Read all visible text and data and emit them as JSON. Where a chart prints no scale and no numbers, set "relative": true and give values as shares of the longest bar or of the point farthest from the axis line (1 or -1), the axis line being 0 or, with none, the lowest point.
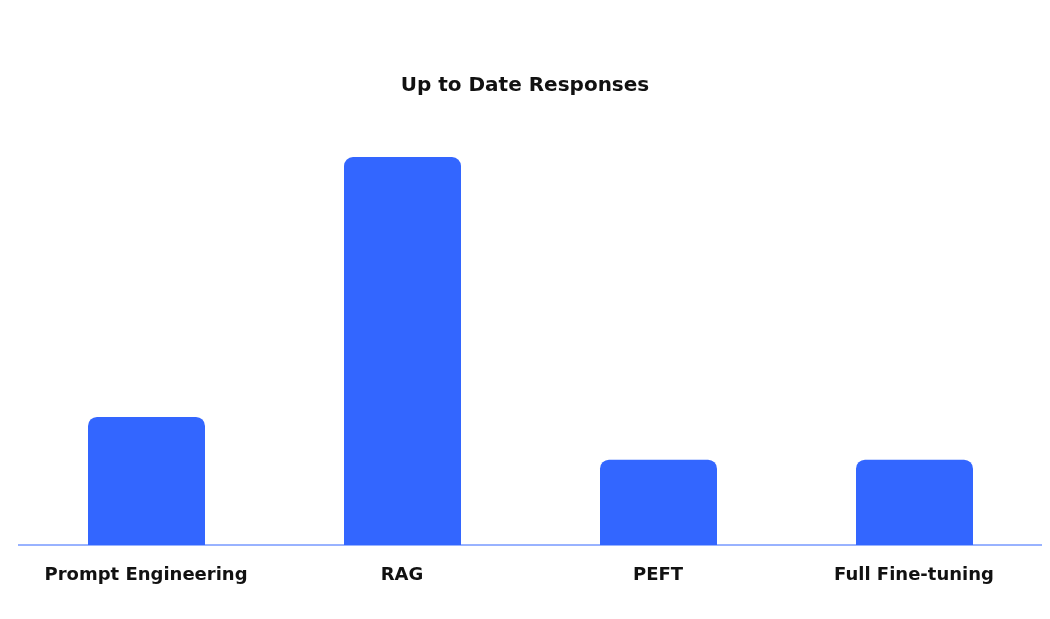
{
  "chart_data": {
    "type": "bar",
    "title": "Up to Date Responses",
    "categories": [
      "Prompt Engineering",
      "RAG",
      "PEFT",
      "Full Fine-tuning"
    ],
    "values": [
      0.33,
      1,
      0.22,
      0.22
    ],
    "color": "#3366ff",
    "relative": true,
    "grid": false,
    "legend": false
  }
}
